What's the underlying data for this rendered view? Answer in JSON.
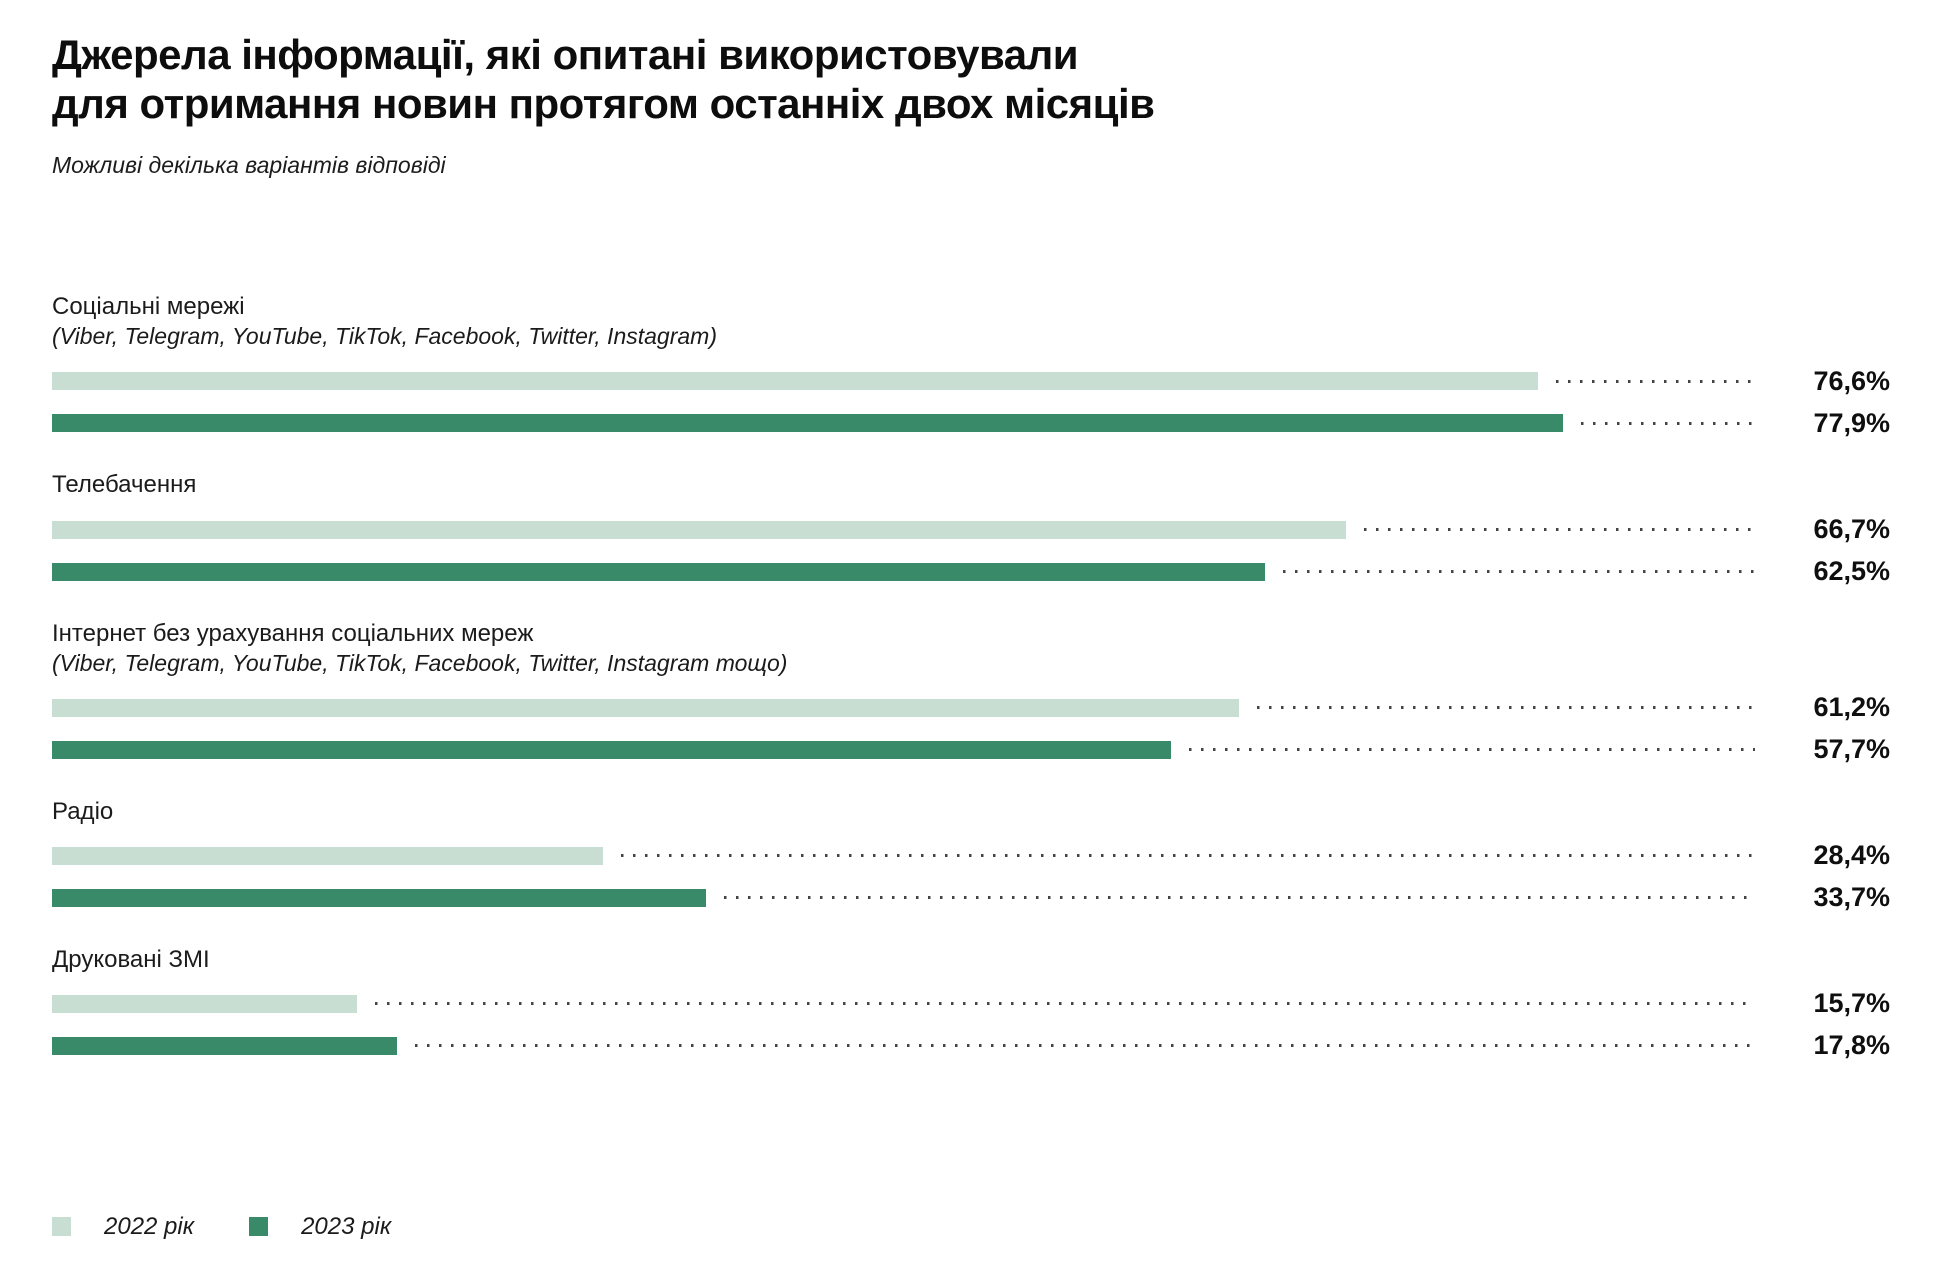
{
  "header": {
    "title_line1": "Джерела інформації, які опитані використовували",
    "title_line2": "для отримання новин протягом останніх двох місяців",
    "subtitle": "Можливі декілька варіантів відповіді"
  },
  "legend": [
    {
      "label": "2022 рік"
    },
    {
      "label": "2023 рік"
    }
  ],
  "chart_data": {
    "type": "bar",
    "orientation": "horizontal",
    "unit": "%",
    "value_range": [
      0,
      100
    ],
    "grid": false,
    "legend_position": "bottom",
    "series_names": [
      "2022 рік",
      "2023 рік"
    ],
    "series_colors": [
      "#C8DED3",
      "#398A68"
    ],
    "leader_dot_color": "#454545",
    "categories": [
      {
        "label": "Соціальні мережі",
        "sublabel": "(Viber, Telegram, YouTube, TikTok, Facebook, Twitter, Instagram)",
        "values": [
          76.6,
          77.9
        ],
        "display": [
          "76,6%",
          "77,9%"
        ]
      },
      {
        "label": "Телебачення",
        "sublabel": "",
        "values": [
          66.7,
          62.5
        ],
        "display": [
          "66,7%",
          "62,5%"
        ]
      },
      {
        "label": "Інтернет без урахування соціальних мереж",
        "sublabel": "(Viber, Telegram, YouTube, TikTok, Facebook, Twitter, Instagram тощо)",
        "values": [
          61.2,
          57.7
        ],
        "display": [
          "61,2%",
          "57,7%"
        ]
      },
      {
        "label": "Радіо",
        "sublabel": "",
        "values": [
          28.4,
          33.7
        ],
        "display": [
          "28,4%",
          "33,7%"
        ]
      },
      {
        "label": "Друковані ЗМІ",
        "sublabel": "",
        "values": [
          15.7,
          17.8
        ],
        "display": [
          "15,7%",
          "17,8%"
        ]
      }
    ]
  }
}
